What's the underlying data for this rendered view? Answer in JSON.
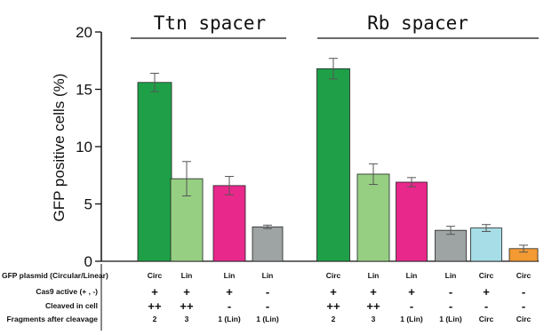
{
  "chart_data": {
    "type": "bar",
    "ylabel": "GFP positive cells (%)",
    "ylim": [
      0,
      20
    ],
    "yticks": [
      "0",
      "5",
      "10",
      "15",
      "20"
    ],
    "grid": false,
    "groups": [
      {
        "title": "Ttn spacer",
        "bars": [
          {
            "value": 15.6,
            "error": 0.8,
            "color": "#1fa048"
          },
          {
            "value": 7.2,
            "error": 1.5,
            "color": "#96cf82"
          },
          {
            "value": 6.6,
            "error": 0.8,
            "color": "#e8288b"
          },
          {
            "value": 3.0,
            "error": 0.15,
            "color": "#9ea4a4"
          }
        ]
      },
      {
        "title": "Rb spacer",
        "bars": [
          {
            "value": 16.8,
            "error": 0.9,
            "color": "#1fa048"
          },
          {
            "value": 7.6,
            "error": 0.9,
            "color": "#96cf82"
          },
          {
            "value": 6.9,
            "error": 0.4,
            "color": "#e8288b"
          },
          {
            "value": 2.7,
            "error": 0.35,
            "color": "#9ea4a4"
          },
          {
            "value": 2.9,
            "error": 0.3,
            "color": "#a6dde6"
          },
          {
            "value": 1.1,
            "error": 0.3,
            "color": "#f39a33"
          }
        ]
      }
    ],
    "table": {
      "row_labels": [
        "GFP plasmid (Circular/Linear)",
        "Cas9 active (+ , -)",
        "Cleaved in cell",
        "Fragments after cleavage"
      ],
      "columns": [
        [
          "Circ",
          "+",
          "++",
          "2"
        ],
        [
          "Lin",
          "+",
          "++",
          "3"
        ],
        [
          "Lin",
          "+",
          "-",
          "1 (Lin)"
        ],
        [
          "Lin",
          "-",
          "-",
          "1 (Lin)"
        ],
        [
          "Circ",
          "+",
          "++",
          "2"
        ],
        [
          "Lin",
          "+",
          "++",
          "3"
        ],
        [
          "Lin",
          "+",
          "-",
          "1 (Lin)"
        ],
        [
          "Lin",
          "-",
          "-",
          "1 (Lin)"
        ],
        [
          "Circ",
          "+",
          "-",
          "Circ"
        ],
        [
          "Circ",
          "-",
          "-",
          "Circ"
        ]
      ]
    }
  }
}
